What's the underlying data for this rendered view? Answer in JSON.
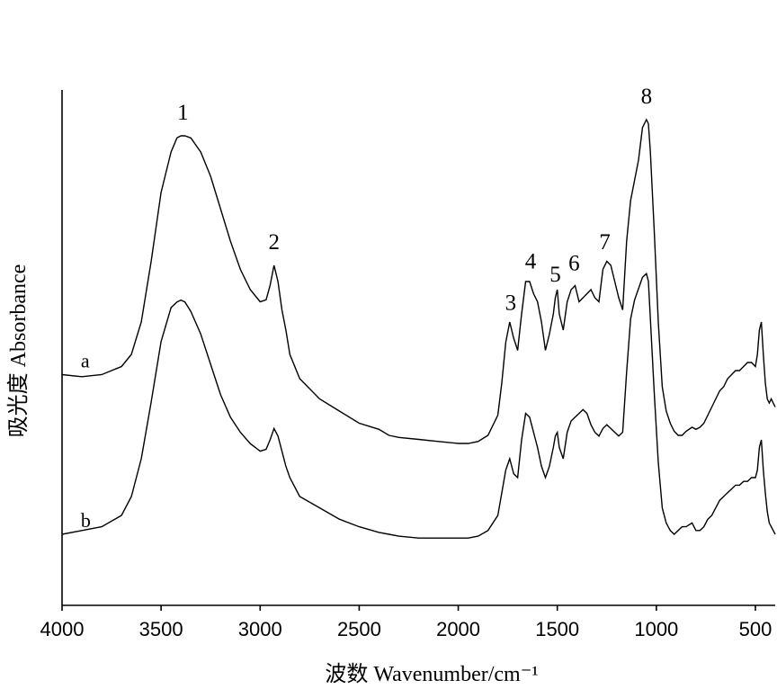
{
  "chart_data": {
    "type": "line",
    "xlabel": "波数 Wavenumber/cm⁻¹",
    "ylabel": "吸光度 Absorbance",
    "xlim": [
      4000,
      400
    ],
    "x_ticks": [
      4000,
      3500,
      3000,
      2500,
      2000,
      1500,
      1000,
      500
    ],
    "x_tick_labels": [
      "4000",
      "3500",
      "3000",
      "2500",
      "2000",
      "1500",
      "1000",
      "500"
    ],
    "y_axis_scale": "relative absorbance, no ticks",
    "ylim": [
      0,
      1
    ],
    "series": [
      {
        "name": "a",
        "x": [
          4000,
          3900,
          3800,
          3700,
          3650,
          3600,
          3550,
          3500,
          3450,
          3420,
          3400,
          3380,
          3350,
          3300,
          3250,
          3200,
          3150,
          3100,
          3050,
          3000,
          2970,
          2950,
          2930,
          2910,
          2890,
          2870,
          2850,
          2800,
          2700,
          2600,
          2500,
          2400,
          2350,
          2300,
          2200,
          2100,
          2000,
          1950,
          1900,
          1850,
          1800,
          1780,
          1760,
          1740,
          1720,
          1700,
          1680,
          1660,
          1640,
          1620,
          1600,
          1580,
          1560,
          1540,
          1520,
          1510,
          1500,
          1490,
          1470,
          1450,
          1430,
          1410,
          1390,
          1370,
          1350,
          1330,
          1310,
          1290,
          1270,
          1250,
          1230,
          1210,
          1190,
          1170,
          1150,
          1130,
          1110,
          1090,
          1070,
          1050,
          1040,
          1030,
          1010,
          990,
          970,
          950,
          930,
          910,
          890,
          870,
          850,
          820,
          800,
          780,
          760,
          740,
          720,
          700,
          680,
          660,
          640,
          620,
          600,
          580,
          560,
          540,
          520,
          500,
          490,
          480,
          470,
          460,
          450,
          440,
          430,
          420,
          410,
          400
        ],
        "y": [
          0.37,
          0.365,
          0.37,
          0.39,
          0.42,
          0.5,
          0.65,
          0.82,
          0.92,
          0.955,
          0.96,
          0.96,
          0.955,
          0.92,
          0.86,
          0.78,
          0.7,
          0.63,
          0.58,
          0.55,
          0.555,
          0.59,
          0.64,
          0.6,
          0.53,
          0.48,
          0.42,
          0.36,
          0.31,
          0.28,
          0.25,
          0.235,
          0.22,
          0.215,
          0.21,
          0.205,
          0.2,
          0.2,
          0.205,
          0.22,
          0.27,
          0.35,
          0.45,
          0.5,
          0.46,
          0.43,
          0.52,
          0.6,
          0.6,
          0.57,
          0.55,
          0.5,
          0.43,
          0.47,
          0.52,
          0.56,
          0.58,
          0.52,
          0.48,
          0.55,
          0.58,
          0.59,
          0.55,
          0.56,
          0.57,
          0.58,
          0.56,
          0.55,
          0.63,
          0.65,
          0.64,
          0.6,
          0.56,
          0.53,
          0.7,
          0.8,
          0.85,
          0.9,
          0.98,
          1.0,
          0.99,
          0.92,
          0.72,
          0.5,
          0.34,
          0.28,
          0.25,
          0.23,
          0.22,
          0.22,
          0.23,
          0.24,
          0.235,
          0.24,
          0.25,
          0.27,
          0.29,
          0.31,
          0.33,
          0.34,
          0.36,
          0.37,
          0.38,
          0.38,
          0.39,
          0.4,
          0.4,
          0.39,
          0.42,
          0.48,
          0.5,
          0.42,
          0.35,
          0.31,
          0.3,
          0.31,
          0.3,
          0.29
        ]
      },
      {
        "name": "b",
        "x": [
          4000,
          3900,
          3800,
          3700,
          3650,
          3600,
          3550,
          3500,
          3450,
          3420,
          3400,
          3380,
          3350,
          3300,
          3250,
          3200,
          3150,
          3100,
          3050,
          3000,
          2970,
          2950,
          2930,
          2910,
          2890,
          2870,
          2850,
          2800,
          2700,
          2600,
          2500,
          2400,
          2350,
          2300,
          2200,
          2100,
          2000,
          1950,
          1900,
          1850,
          1800,
          1780,
          1760,
          1740,
          1720,
          1700,
          1680,
          1660,
          1640,
          1620,
          1600,
          1580,
          1560,
          1540,
          1520,
          1510,
          1500,
          1490,
          1470,
          1450,
          1430,
          1410,
          1390,
          1370,
          1350,
          1330,
          1310,
          1290,
          1270,
          1250,
          1230,
          1210,
          1190,
          1170,
          1150,
          1130,
          1110,
          1090,
          1070,
          1050,
          1040,
          1030,
          1010,
          990,
          970,
          950,
          930,
          910,
          890,
          870,
          850,
          820,
          800,
          780,
          760,
          740,
          720,
          700,
          680,
          660,
          640,
          620,
          600,
          580,
          560,
          540,
          520,
          500,
          490,
          480,
          470,
          460,
          450,
          440,
          430,
          420,
          410,
          400
        ],
        "y": [
          0.15,
          0.16,
          0.17,
          0.2,
          0.25,
          0.35,
          0.5,
          0.66,
          0.75,
          0.765,
          0.77,
          0.765,
          0.74,
          0.68,
          0.6,
          0.52,
          0.46,
          0.42,
          0.39,
          0.37,
          0.375,
          0.4,
          0.43,
          0.41,
          0.37,
          0.33,
          0.3,
          0.25,
          0.22,
          0.19,
          0.17,
          0.155,
          0.15,
          0.145,
          0.14,
          0.14,
          0.14,
          0.14,
          0.145,
          0.16,
          0.2,
          0.26,
          0.32,
          0.35,
          0.31,
          0.3,
          0.4,
          0.47,
          0.46,
          0.42,
          0.38,
          0.33,
          0.3,
          0.33,
          0.38,
          0.41,
          0.42,
          0.38,
          0.35,
          0.42,
          0.45,
          0.46,
          0.47,
          0.48,
          0.47,
          0.44,
          0.42,
          0.41,
          0.43,
          0.44,
          0.43,
          0.42,
          0.41,
          0.42,
          0.58,
          0.72,
          0.77,
          0.8,
          0.83,
          0.84,
          0.82,
          0.72,
          0.52,
          0.34,
          0.22,
          0.18,
          0.16,
          0.15,
          0.16,
          0.17,
          0.17,
          0.18,
          0.16,
          0.16,
          0.17,
          0.19,
          0.2,
          0.22,
          0.24,
          0.25,
          0.26,
          0.27,
          0.28,
          0.28,
          0.29,
          0.29,
          0.3,
          0.3,
          0.32,
          0.38,
          0.4,
          0.32,
          0.26,
          0.21,
          0.18,
          0.17,
          0.16,
          0.15
        ]
      }
    ],
    "peaks": [
      {
        "label": "1",
        "x": 3390
      },
      {
        "label": "2",
        "x": 2930
      },
      {
        "label": "3",
        "x": 1735
      },
      {
        "label": "4",
        "x": 1635
      },
      {
        "label": "5",
        "x": 1510
      },
      {
        "label": "6",
        "x": 1415
      },
      {
        "label": "7",
        "x": 1260
      },
      {
        "label": "8",
        "x": 1050
      }
    ],
    "grid": false,
    "legend": "none"
  }
}
